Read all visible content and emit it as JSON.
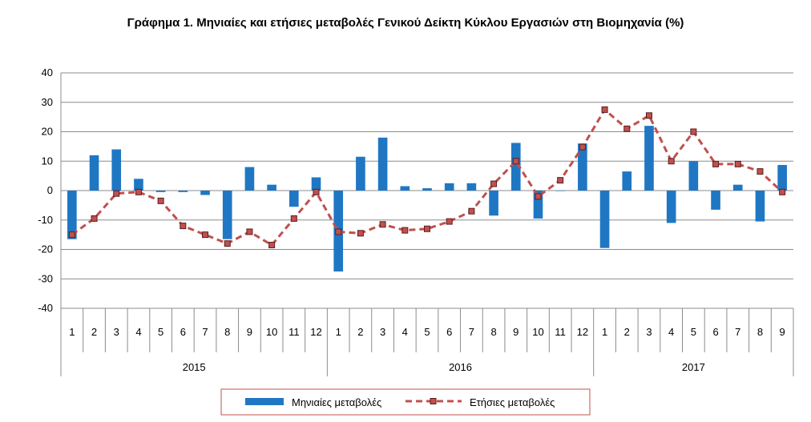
{
  "chart_data": {
    "type": "bar",
    "title": "Γράφημα 1. Μηνιαίες και ετήσιες μεταβολές  Γενικού Δείκτη Κύκλου Εργασιών στη Βιομηχανία (%)",
    "ylim": [
      -40,
      40
    ],
    "yticks": [
      40,
      30,
      20,
      10,
      0,
      -10,
      -20,
      -30,
      -40
    ],
    "grid": true,
    "legend_position": "bottom",
    "months": [
      "1",
      "2",
      "3",
      "4",
      "5",
      "6",
      "7",
      "8",
      "9",
      "10",
      "11",
      "12",
      "1",
      "2",
      "3",
      "4",
      "5",
      "6",
      "7",
      "8",
      "9",
      "10",
      "11",
      "12",
      "1",
      "2",
      "3",
      "4",
      "5",
      "6",
      "7",
      "8",
      "9"
    ],
    "years": [
      {
        "label": "2015",
        "count": 12
      },
      {
        "label": "2016",
        "count": 12
      },
      {
        "label": "2017",
        "count": 9
      }
    ],
    "series": [
      {
        "name": "Μηνιαίες μεταβολές",
        "type": "bar",
        "color": "#1f77c4",
        "values": [
          -16.5,
          12,
          14,
          4,
          -0.5,
          -0.5,
          -1.5,
          -16.5,
          8,
          2,
          -5.5,
          4.5,
          -27.5,
          11.5,
          18,
          1.5,
          0.8,
          2.5,
          2.5,
          -8.5,
          16.2,
          -9.5,
          0,
          16,
          -19.5,
          6.5,
          22,
          -11,
          10,
          -6.5,
          2,
          -10.5,
          8.7
        ]
      },
      {
        "name": "Ετήσιες μεταβολές",
        "type": "line",
        "color": "#c0504d",
        "values": [
          -15,
          -9.5,
          -1,
          -0.5,
          -3.5,
          -12,
          -15,
          -18,
          -14,
          -18.5,
          -9.5,
          -0.5,
          -14,
          -14.5,
          -11.5,
          -13.5,
          -13,
          -10.5,
          -7,
          2.3,
          10,
          -2,
          3.5,
          14.8,
          27.5,
          21,
          25.5,
          10,
          20,
          9,
          9,
          6.5,
          -0.5
        ]
      }
    ]
  }
}
